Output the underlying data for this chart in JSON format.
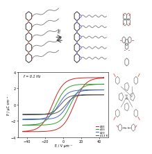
{
  "plot_xlim": [
    -50,
    50
  ],
  "plot_ylim": [
    -4,
    4
  ],
  "xlabel": "E / V µm⁻¹",
  "ylabel": "P / µC cm⁻²",
  "freq_label": "f = 0.1 Hz",
  "legend_labels": [
    "443",
    "433",
    "423",
    "413 K"
  ],
  "legend_colors": [
    "#d42020",
    "#2ca02c",
    "#4169c8",
    "#555555"
  ],
  "xticks": [
    -40,
    -20,
    0,
    20,
    40
  ],
  "yticks": [
    -4,
    -2,
    0,
    2,
    4
  ],
  "bg_color": "#ffffff",
  "pink": "#e07878",
  "blue": "#7878d0",
  "gray": "#777777",
  "dark": "#333333"
}
